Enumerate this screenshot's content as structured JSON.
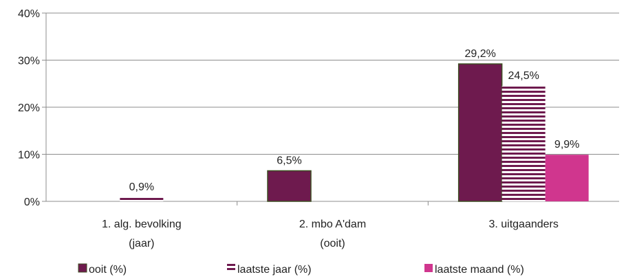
{
  "chart_data": {
    "type": "bar",
    "categories": [
      [
        "1. alg. bevolking",
        "(jaar)"
      ],
      [
        "2. mbo A'dam",
        "(ooit)"
      ],
      [
        "3. uitgaanders"
      ]
    ],
    "series": [
      {
        "name": "ooit (%)",
        "values": [
          null,
          6.5,
          29.2
        ],
        "labels": [
          null,
          "6,5%",
          "29,2%"
        ],
        "color": "#6e1a4e",
        "pattern": "solid"
      },
      {
        "name": "laatste jaar (%)",
        "values": [
          0.9,
          null,
          24.5
        ],
        "labels": [
          "0,9%",
          null,
          "24,5%"
        ],
        "color": "#6e1a4e",
        "pattern": "stripes"
      },
      {
        "name": "laatste maand (%)",
        "values": [
          null,
          null,
          9.9
        ],
        "labels": [
          null,
          null,
          "9,9%"
        ],
        "color": "#d0368e",
        "pattern": "solid"
      }
    ],
    "yticks": [
      "0%",
      "10%",
      "20%",
      "30%",
      "40%"
    ],
    "ylim": [
      0,
      40
    ],
    "grid": true,
    "legend": "bottom"
  }
}
